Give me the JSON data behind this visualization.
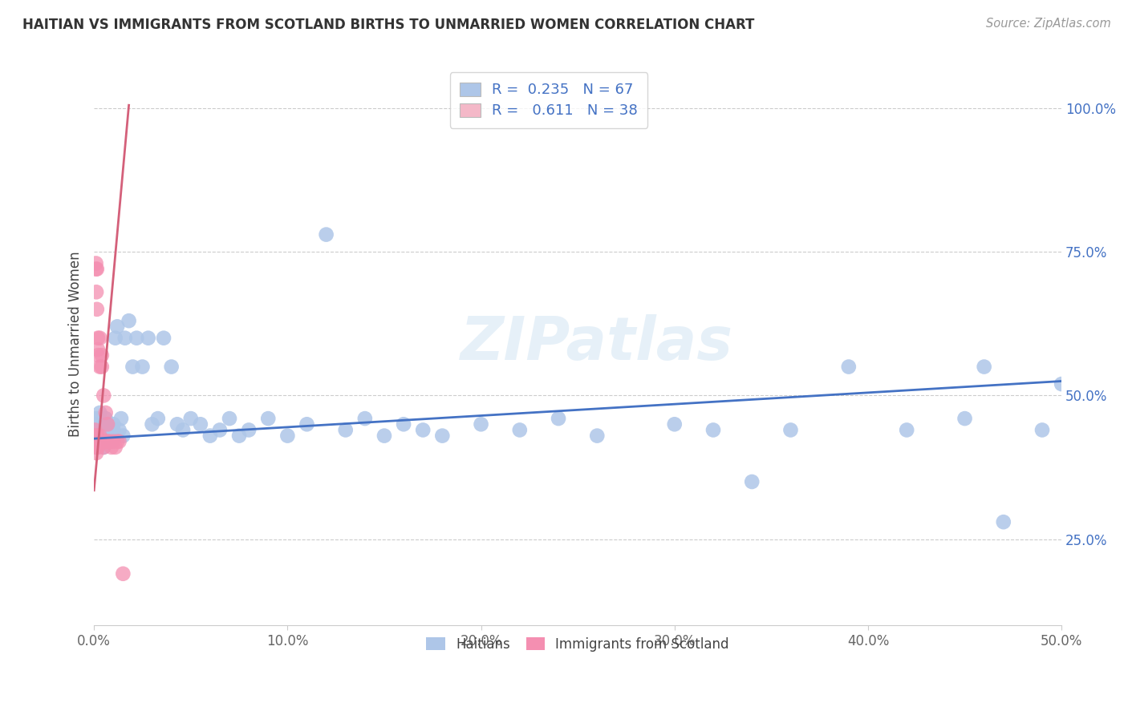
{
  "title": "HAITIAN VS IMMIGRANTS FROM SCOTLAND BIRTHS TO UNMARRIED WOMEN CORRELATION CHART",
  "source": "Source: ZipAtlas.com",
  "ylabel": "Births to Unmarried Women",
  "xlim": [
    0.0,
    0.5
  ],
  "ylim": [
    0.1,
    1.08
  ],
  "xticks": [
    0.0,
    0.1,
    0.2,
    0.3,
    0.4,
    0.5
  ],
  "xtick_labels": [
    "0.0%",
    "10.0%",
    "20.0%",
    "30.0%",
    "40.0%",
    "50.0%"
  ],
  "yticks": [
    0.25,
    0.5,
    0.75,
    1.0
  ],
  "ytick_labels": [
    "25.0%",
    "50.0%",
    "75.0%",
    "100.0%"
  ],
  "legend_color1": "#aec6e8",
  "legend_color2": "#f4b8c8",
  "dot_color1": "#aec6e8",
  "dot_color2": "#f48fb1",
  "line_color1": "#4472c4",
  "line_color2": "#d4607a",
  "blue_x": [
    0.001,
    0.001,
    0.002,
    0.002,
    0.003,
    0.003,
    0.004,
    0.004,
    0.005,
    0.005,
    0.006,
    0.006,
    0.007,
    0.007,
    0.008,
    0.009,
    0.01,
    0.01,
    0.011,
    0.012,
    0.013,
    0.014,
    0.015,
    0.016,
    0.018,
    0.02,
    0.022,
    0.025,
    0.028,
    0.03,
    0.033,
    0.036,
    0.04,
    0.043,
    0.046,
    0.05,
    0.055,
    0.06,
    0.065,
    0.07,
    0.075,
    0.08,
    0.09,
    0.1,
    0.11,
    0.12,
    0.13,
    0.14,
    0.15,
    0.16,
    0.17,
    0.18,
    0.2,
    0.22,
    0.24,
    0.26,
    0.3,
    0.32,
    0.34,
    0.36,
    0.39,
    0.42,
    0.45,
    0.46,
    0.47,
    0.49,
    0.5
  ],
  "blue_y": [
    0.44,
    0.46,
    0.43,
    0.45,
    0.42,
    0.47,
    0.44,
    0.43,
    0.45,
    0.41,
    0.44,
    0.46,
    0.43,
    0.45,
    0.44,
    0.42,
    0.45,
    0.44,
    0.6,
    0.62,
    0.44,
    0.46,
    0.43,
    0.6,
    0.63,
    0.55,
    0.6,
    0.55,
    0.6,
    0.45,
    0.46,
    0.6,
    0.55,
    0.45,
    0.44,
    0.46,
    0.45,
    0.43,
    0.44,
    0.46,
    0.43,
    0.44,
    0.46,
    0.43,
    0.45,
    0.78,
    0.44,
    0.46,
    0.43,
    0.45,
    0.44,
    0.43,
    0.45,
    0.44,
    0.46,
    0.43,
    0.45,
    0.44,
    0.35,
    0.44,
    0.55,
    0.44,
    0.46,
    0.55,
    0.28,
    0.44,
    0.52
  ],
  "pink_x": [
    0.0005,
    0.0005,
    0.0008,
    0.001,
    0.001,
    0.001,
    0.001,
    0.0012,
    0.0012,
    0.0015,
    0.0015,
    0.0015,
    0.002,
    0.002,
    0.002,
    0.002,
    0.002,
    0.002,
    0.003,
    0.003,
    0.003,
    0.003,
    0.004,
    0.004,
    0.004,
    0.005,
    0.005,
    0.006,
    0.006,
    0.007,
    0.007,
    0.008,
    0.009,
    0.01,
    0.011,
    0.012,
    0.013,
    0.015
  ],
  "pink_y": [
    0.43,
    0.44,
    0.43,
    0.72,
    0.73,
    0.41,
    0.42,
    0.68,
    0.4,
    0.65,
    0.72,
    0.41,
    0.58,
    0.57,
    0.42,
    0.43,
    0.6,
    0.41,
    0.55,
    0.6,
    0.43,
    0.42,
    0.57,
    0.55,
    0.42,
    0.5,
    0.41,
    0.47,
    0.42,
    0.45,
    0.42,
    0.42,
    0.41,
    0.42,
    0.41,
    0.42,
    0.42,
    0.19
  ],
  "pink_line_x": [
    0.0,
    0.018
  ],
  "pink_line_y": [
    0.335,
    1.005
  ],
  "blue_line_x": [
    0.0,
    0.5
  ],
  "blue_line_y": [
    0.425,
    0.525
  ]
}
